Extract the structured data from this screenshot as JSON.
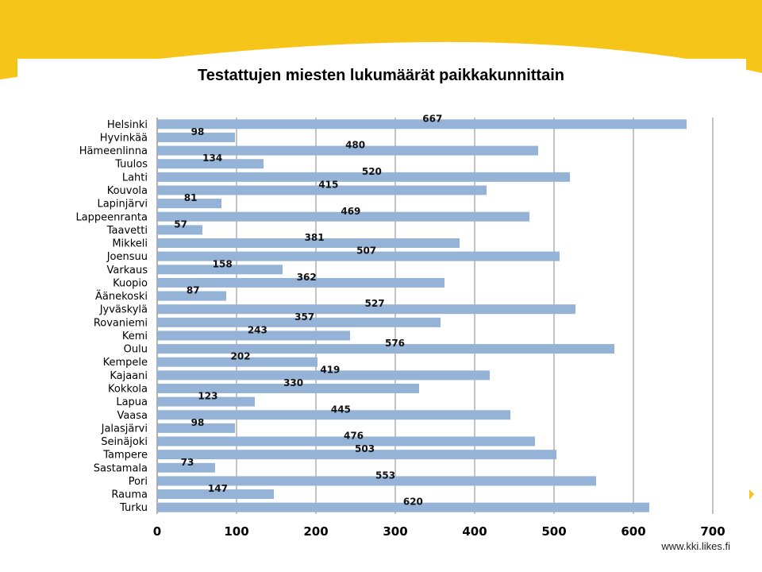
{
  "colors": {
    "bar": "#95b3d7",
    "accent": "#f6c51a",
    "gridline": "#888888"
  },
  "footer": {
    "text": "www.kki.likes.fi"
  },
  "chart_data": {
    "type": "bar",
    "orientation": "horizontal",
    "title": "Testattujen miesten lukumäärät paikkakunnittain",
    "xlim": [
      0,
      700
    ],
    "xticks": [
      0,
      100,
      200,
      300,
      400,
      500,
      600,
      700
    ],
    "grid": true,
    "data_labels": true,
    "categories": [
      "Helsinki",
      "Hyvinkää",
      "Hämeenlinna",
      "Tuulos",
      "Lahti",
      "Kouvola",
      "Lapinjärvi",
      "Lappeenranta",
      "Taavetti",
      "Mikkeli",
      "Joensuu",
      "Varkaus",
      "Kuopio",
      "Äänekoski",
      "Jyväskylä",
      "Rovaniemi",
      "Kemi",
      "Oulu",
      "Kempele",
      "Kajaani",
      "Kokkola",
      "Lapua",
      "Vaasa",
      "Jalasjärvi",
      "Seinäjoki",
      "Tampere",
      "Sastamala",
      "Pori",
      "Rauma",
      "Turku"
    ],
    "values": [
      667,
      98,
      480,
      134,
      520,
      415,
      81,
      469,
      57,
      381,
      507,
      158,
      362,
      87,
      527,
      357,
      243,
      576,
      202,
      419,
      330,
      123,
      445,
      98,
      476,
      503,
      73,
      553,
      147,
      620
    ]
  }
}
